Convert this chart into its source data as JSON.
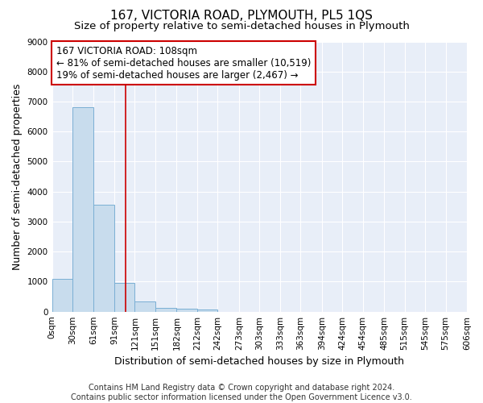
{
  "title": "167, VICTORIA ROAD, PLYMOUTH, PL5 1QS",
  "subtitle": "Size of property relative to semi-detached houses in Plymouth",
  "xlabel": "Distribution of semi-detached houses by size in Plymouth",
  "ylabel": "Number of semi-detached properties",
  "bar_values": [
    1100,
    6800,
    3550,
    970,
    340,
    130,
    95,
    80,
    0,
    0,
    0,
    0,
    0,
    0,
    0,
    0,
    0,
    0,
    0,
    0
  ],
  "bin_edges": [
    0,
    30,
    61,
    91,
    121,
    151,
    182,
    212,
    242,
    273,
    303,
    333,
    363,
    394,
    424,
    454,
    485,
    515,
    545,
    575,
    606
  ],
  "tick_labels": [
    "0sqm",
    "30sqm",
    "61sqm",
    "91sqm",
    "121sqm",
    "151sqm",
    "182sqm",
    "212sqm",
    "242sqm",
    "273sqm",
    "303sqm",
    "333sqm",
    "363sqm",
    "394sqm",
    "424sqm",
    "454sqm",
    "485sqm",
    "515sqm",
    "545sqm",
    "575sqm",
    "606sqm"
  ],
  "ylim": [
    0,
    9000
  ],
  "yticks": [
    0,
    1000,
    2000,
    3000,
    4000,
    5000,
    6000,
    7000,
    8000,
    9000
  ],
  "bar_color": "#c8dced",
  "bar_edge_color": "#7aafd4",
  "property_line_x": 108,
  "property_line_color": "#cc0000",
  "annotation_text": "167 VICTORIA ROAD: 108sqm\n← 81% of semi-detached houses are smaller (10,519)\n19% of semi-detached houses are larger (2,467) →",
  "annotation_box_color": "#ffffff",
  "annotation_box_edge": "#cc0000",
  "footer_line1": "Contains HM Land Registry data © Crown copyright and database right 2024.",
  "footer_line2": "Contains public sector information licensed under the Open Government Licence v3.0.",
  "background_color": "#e8eef8",
  "grid_color": "#ffffff",
  "title_fontsize": 11,
  "subtitle_fontsize": 9.5,
  "axis_label_fontsize": 9,
  "tick_fontsize": 7.5,
  "annotation_fontsize": 8.5,
  "footer_fontsize": 7
}
